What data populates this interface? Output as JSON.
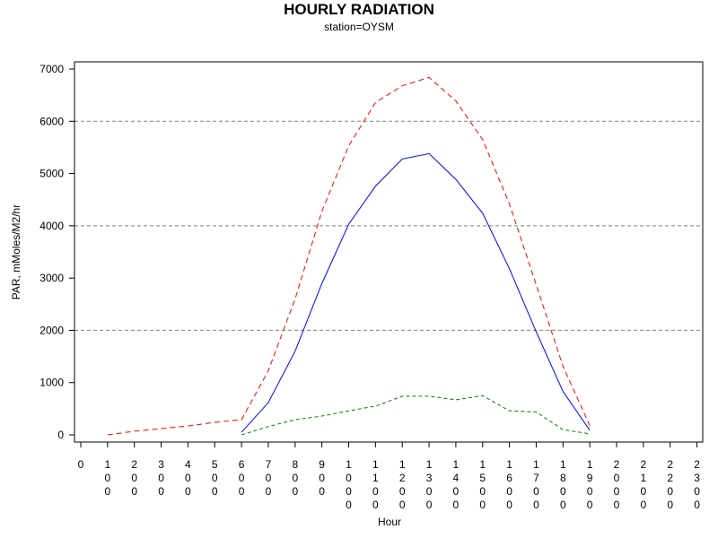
{
  "chart_data": {
    "type": "line",
    "title": "HOURLY RADIATION",
    "subtitle": "station=OYSM",
    "xlabel": "Hour",
    "ylabel": "PAR, mMoles/M2/hr",
    "x_ticks": [
      "0",
      "100",
      "200",
      "300",
      "400",
      "500",
      "600",
      "700",
      "800",
      "900",
      "1000",
      "1100",
      "1200",
      "1300",
      "1400",
      "1500",
      "1600",
      "1700",
      "1800",
      "1900",
      "2000",
      "2100",
      "2200",
      "2300"
    ],
    "xlim": [
      0,
      2300
    ],
    "ylim": [
      0,
      7000
    ],
    "y_ticks": [
      0,
      1000,
      2000,
      3000,
      4000,
      5000,
      6000,
      7000
    ],
    "grid": "horizontal dashed at 2000, 4000, 6000",
    "series": [
      {
        "style": "dashed",
        "color": "#ff0000",
        "x": [
          100,
          200,
          300,
          400,
          500,
          600,
          700,
          800,
          900,
          1000,
          1100,
          1200,
          1300,
          1400,
          1500,
          1600,
          1700,
          1800,
          1900
        ],
        "y": [
          0,
          70,
          120,
          170,
          240,
          290,
          1230,
          2600,
          4280,
          5530,
          6360,
          6680,
          6840,
          6390,
          5650,
          4420,
          2870,
          1310,
          180
        ]
      },
      {
        "style": "solid",
        "color": "#0000ff",
        "x": [
          600,
          700,
          800,
          900,
          1000,
          1100,
          1200,
          1300,
          1400,
          1500,
          1600,
          1700,
          1800,
          1900
        ],
        "y": [
          50,
          620,
          1600,
          2900,
          4030,
          4760,
          5280,
          5380,
          4890,
          4240,
          3180,
          1970,
          830,
          90
        ]
      },
      {
        "style": "short-dashed",
        "color": "#008000",
        "x": [
          600,
          700,
          800,
          900,
          1000,
          1100,
          1200,
          1300,
          1400,
          1500,
          1600,
          1700,
          1800,
          1900
        ],
        "y": [
          0,
          160,
          290,
          360,
          460,
          550,
          740,
          740,
          670,
          750,
          460,
          440,
          100,
          20
        ]
      }
    ]
  }
}
